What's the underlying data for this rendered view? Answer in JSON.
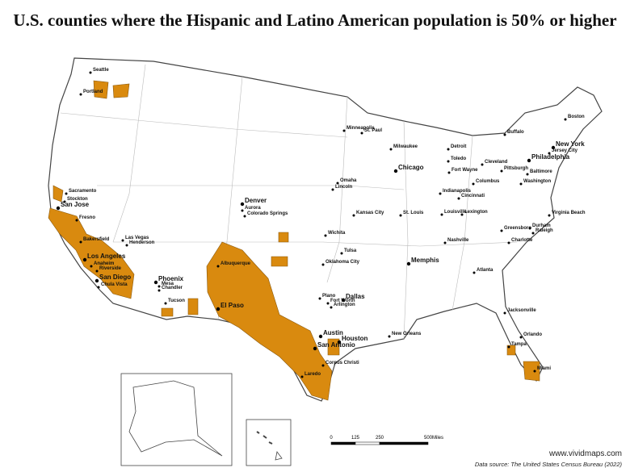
{
  "title": "U.S. counties where the Hispanic and Latino American population is 50% or higher",
  "cities": [
    "Seattle",
    "Portland",
    "Sacramento",
    "Stockton",
    "San Jose",
    "Fresno",
    "Bakersfield",
    "Las Vegas",
    "Henderson",
    "Los Angeles",
    "Anaheim",
    "Riverside",
    "San Diego",
    "Chula Vista",
    "Phoenix",
    "Mesa",
    "Chandler",
    "Tucson",
    "Albuquerque",
    "El Paso",
    "Denver",
    "Aurora",
    "Colorado Springs",
    "Wichita",
    "Omaha",
    "Lincoln",
    "Kansas City",
    "Tulsa",
    "Oklahoma City",
    "Plano",
    "Dallas",
    "Fort Worth",
    "Arlington",
    "Austin",
    "Houston",
    "San Antonio",
    "Corpus Christi",
    "Laredo",
    "New Orleans",
    "Memphis",
    "Nashville",
    "St. Louis",
    "Chicago",
    "Milwaukee",
    "Minneapolis",
    "St. Paul",
    "Detroit",
    "Toledo",
    "Cleveland",
    "Fort Wayne",
    "Indianapolis",
    "Cincinnati",
    "Columbus",
    "Louisville",
    "Lexington",
    "Pittsburgh",
    "Buffalo",
    "Philadelphia",
    "Jersey City",
    "New York",
    "Boston",
    "Baltimore",
    "Washington",
    "Virginia Beach",
    "Greensboro",
    "Durham",
    "Raleigh",
    "Charlotte",
    "Atlanta",
    "Jacksonville",
    "Orlando",
    "Tampa",
    "Miami"
  ],
  "scale_bar": {
    "ticks": [
      0,
      125,
      250,
      500
    ],
    "unit": "Miles"
  },
  "website": "www.vividmaps.com",
  "source": "Data source: The United States Census Bureau (2022)"
}
